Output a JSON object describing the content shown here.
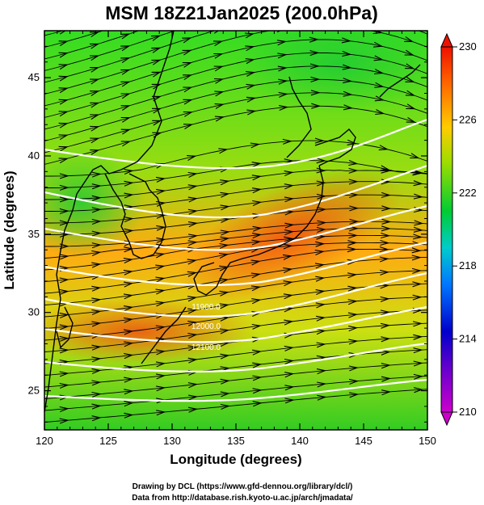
{
  "title": "MSM 18Z21Jan2025 (200.0hPa)",
  "xlabel": "Longitude (degrees)",
  "ylabel": "Latitude  (degrees)",
  "credits": [
    "Drawing by DCL (https://www.gfd-dennou.org/library/dcl/)",
    "Data from http://database.rish.kyoto-u.ac.jp/arch/jmadata/"
  ],
  "map": {
    "lon_range": [
      120,
      150
    ],
    "lat_range": [
      22.5,
      48
    ],
    "x_ticks": [
      "120",
      "125",
      "130",
      "135",
      "140",
      "145",
      "150"
    ],
    "y_ticks": [
      "25",
      "30",
      "35",
      "40",
      "45"
    ],
    "field": "temperature (K)",
    "wind_vectors": "westerly flow, arrows",
    "contour_color": "#ffffff",
    "contour_labels": [
      "11900.0",
      "12000.0",
      "12100.0"
    ]
  },
  "colorbar": {
    "min": 210,
    "max": 230,
    "labels": [
      "230",
      "226",
      "222",
      "218",
      "214",
      "210"
    ],
    "colors": [
      "#cc00cc",
      "#0000cc",
      "#0099ff",
      "#00cc99",
      "#00cc00",
      "#99dd00",
      "#ffcc00",
      "#ff6600",
      "#ee1100"
    ]
  }
}
